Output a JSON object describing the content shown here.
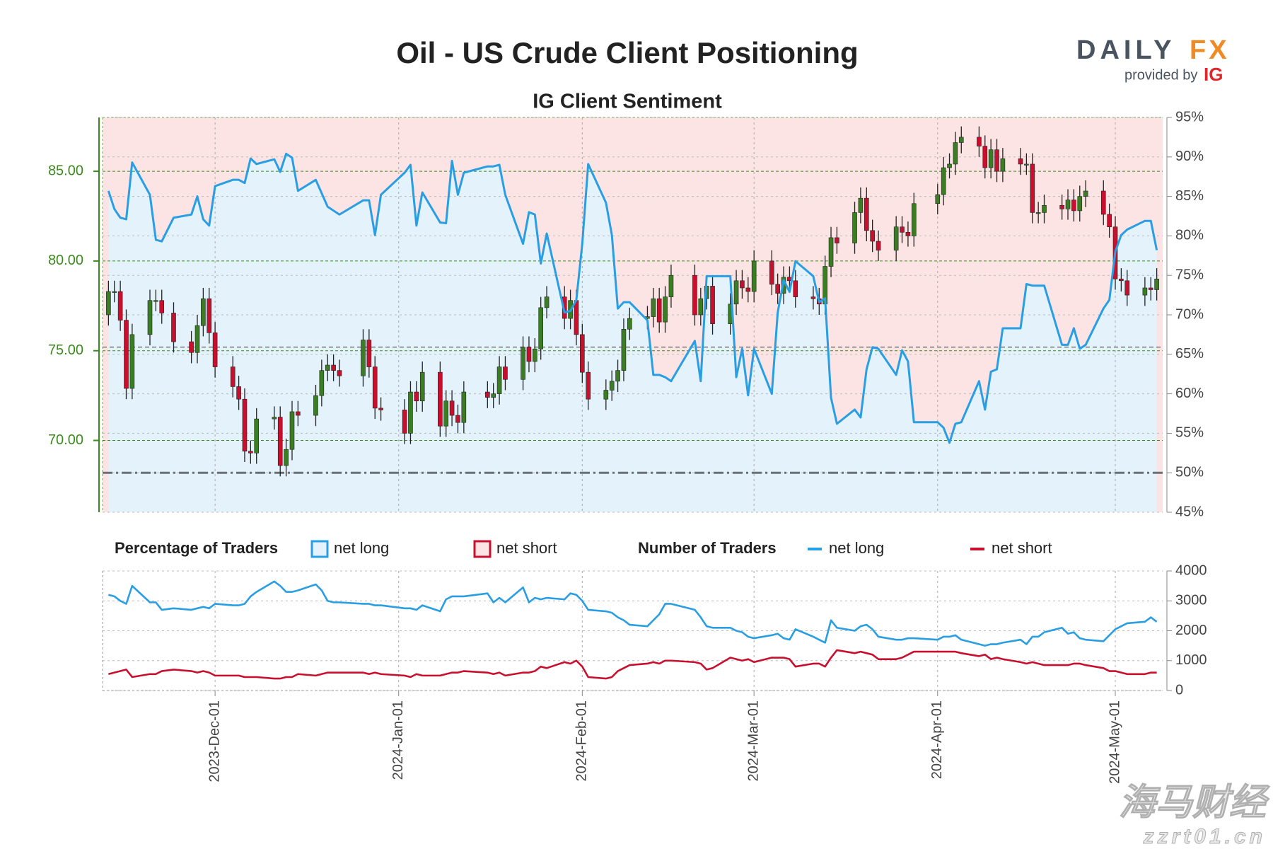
{
  "branding": {
    "name_left": "DAILY",
    "name_right": "FX",
    "provided_by": "provided by",
    "ig": "IG"
  },
  "watermark": [
    "海马财经",
    "zzrt01.cn"
  ],
  "chart_data": [
    {
      "type": "candlestick",
      "title": "Oil - US Crude Client Positioning",
      "subtitle": "IG Client Sentiment",
      "legend_title": "Percentage of Traders",
      "up_color": "#3b7d23",
      "down_color": "#c8102e",
      "wick_color": "#222222",
      "y_axis_color": "#3c8a1e",
      "ylim": [
        66,
        88
      ],
      "yticks": [
        {
          "value": 70,
          "label": "70.00"
        },
        {
          "value": 75,
          "label": "75.00"
        },
        {
          "value": 80,
          "label": "80.00"
        },
        {
          "value": 85,
          "label": "85.00"
        }
      ],
      "y2lim": [
        45,
        95
      ],
      "y2ticks": [
        {
          "value": 45,
          "label": "45%"
        },
        {
          "value": 50,
          "label": "50%"
        },
        {
          "value": 55,
          "label": "55%"
        },
        {
          "value": 60,
          "label": "60%"
        },
        {
          "value": 65,
          "label": "65%"
        },
        {
          "value": 70,
          "label": "70%"
        },
        {
          "value": 75,
          "label": "75%"
        },
        {
          "value": 80,
          "label": "80%"
        },
        {
          "value": 85,
          "label": "85%"
        },
        {
          "value": 90,
          "label": "90%"
        },
        {
          "value": 95,
          "label": "95%"
        }
      ],
      "price_line": 75.2,
      "y2_midline": 50,
      "grid": true,
      "x": [
        "2023-11-13",
        "2023-11-14",
        "2023-11-15",
        "2023-11-16",
        "2023-11-17",
        "2023-11-20",
        "2023-11-21",
        "2023-11-22",
        "2023-11-24",
        "2023-11-27",
        "2023-11-28",
        "2023-11-29",
        "2023-11-30",
        "2023-12-01",
        "2023-12-04",
        "2023-12-05",
        "2023-12-06",
        "2023-12-07",
        "2023-12-08",
        "2023-12-11",
        "2023-12-12",
        "2023-12-13",
        "2023-12-14",
        "2023-12-15",
        "2023-12-18",
        "2023-12-19",
        "2023-12-20",
        "2023-12-21",
        "2023-12-22",
        "2023-12-26",
        "2023-12-27",
        "2023-12-28",
        "2023-12-29",
        "2024-01-02",
        "2024-01-03",
        "2024-01-04",
        "2024-01-05",
        "2024-01-08",
        "2024-01-09",
        "2024-01-10",
        "2024-01-11",
        "2024-01-12",
        "2024-01-16",
        "2024-01-17",
        "2024-01-18",
        "2024-01-19",
        "2024-01-22",
        "2024-01-23",
        "2024-01-24",
        "2024-01-25",
        "2024-01-26",
        "2024-01-29",
        "2024-01-30",
        "2024-01-31",
        "2024-02-01",
        "2024-02-02",
        "2024-02-05",
        "2024-02-06",
        "2024-02-07",
        "2024-02-08",
        "2024-02-09",
        "2024-02-12",
        "2024-02-13",
        "2024-02-14",
        "2024-02-15",
        "2024-02-16",
        "2024-02-20",
        "2024-02-21",
        "2024-02-22",
        "2024-02-23",
        "2024-02-26",
        "2024-02-27",
        "2024-02-28",
        "2024-02-29",
        "2024-03-01",
        "2024-03-04",
        "2024-03-05",
        "2024-03-06",
        "2024-03-07",
        "2024-03-08",
        "2024-03-11",
        "2024-03-12",
        "2024-03-13",
        "2024-03-14",
        "2024-03-15",
        "2024-03-18",
        "2024-03-19",
        "2024-03-20",
        "2024-03-21",
        "2024-03-22",
        "2024-03-25",
        "2024-03-26",
        "2024-03-27",
        "2024-03-28",
        "2024-04-01",
        "2024-04-02",
        "2024-04-03",
        "2024-04-04",
        "2024-04-05",
        "2024-04-08",
        "2024-04-09",
        "2024-04-10",
        "2024-04-11",
        "2024-04-12",
        "2024-04-15",
        "2024-04-16",
        "2024-04-17",
        "2024-04-18",
        "2024-04-19",
        "2024-04-22",
        "2024-04-23",
        "2024-04-24",
        "2024-04-25",
        "2024-04-26",
        "2024-04-29",
        "2024-04-30",
        "2024-05-01",
        "2024-05-02",
        "2024-05-03",
        "2024-05-06",
        "2024-05-07",
        "2024-05-08"
      ],
      "open": [
        77.0,
        78.3,
        78.3,
        76.7,
        72.9,
        75.9,
        77.8,
        77.8,
        77.1,
        75.5,
        74.9,
        76.4,
        77.9,
        76.0,
        74.1,
        73.0,
        72.3,
        69.4,
        69.3,
        71.2,
        71.3,
        68.6,
        69.5,
        71.6,
        71.4,
        72.5,
        73.9,
        74.2,
        73.9,
        73.6,
        75.6,
        74.1,
        71.8,
        71.7,
        70.4,
        72.7,
        72.2,
        73.8,
        70.8,
        72.2,
        71.4,
        71.0,
        72.7,
        72.4,
        72.6,
        74.1,
        73.4,
        75.2,
        74.4,
        75.1,
        77.4,
        78.0,
        76.8,
        77.8,
        75.9,
        73.8,
        72.3,
        72.8,
        73.3,
        73.9,
        76.2,
        76.8,
        76.9,
        77.9,
        76.6,
        78.0,
        79.2,
        77.0,
        77.9,
        78.6,
        76.5,
        77.6,
        78.9,
        78.5,
        78.3,
        80.0,
        78.7,
        78.2,
        79.1,
        78.9,
        78.0,
        77.9,
        77.6,
        79.7,
        81.3,
        81.0,
        82.7,
        83.5,
        81.7,
        81.1,
        80.6,
        81.9,
        81.6,
        81.4,
        83.2,
        83.7,
        85.2,
        85.4,
        86.6,
        86.9,
        86.4,
        85.2,
        86.2,
        85.0,
        85.7,
        85.4,
        85.4,
        82.7,
        82.7,
        83.1,
        82.9,
        83.4,
        82.8,
        83.6,
        83.9,
        82.6,
        81.9,
        79.0,
        78.9,
        78.1,
        78.5,
        78.4
      ],
      "high": [
        78.9,
        78.9,
        78.9,
        77.3,
        76.5,
        78.4,
        78.4,
        78.4,
        77.7,
        76.1,
        77.0,
        78.5,
        78.5,
        76.6,
        74.7,
        73.6,
        72.9,
        70.0,
        71.8,
        71.9,
        71.9,
        70.1,
        72.2,
        72.2,
        73.1,
        74.5,
        74.8,
        74.8,
        74.5,
        76.2,
        76.2,
        74.7,
        72.4,
        72.3,
        73.3,
        73.3,
        74.4,
        74.4,
        72.8,
        72.8,
        72.0,
        73.3,
        73.3,
        73.2,
        74.7,
        74.7,
        75.8,
        75.8,
        75.7,
        78.0,
        78.6,
        78.6,
        78.4,
        78.4,
        76.5,
        74.4,
        73.4,
        73.9,
        74.5,
        76.8,
        77.4,
        77.5,
        78.5,
        78.5,
        78.6,
        79.8,
        79.8,
        78.5,
        79.2,
        79.2,
        78.2,
        79.5,
        79.5,
        79.1,
        80.6,
        80.6,
        79.3,
        79.7,
        79.7,
        79.5,
        78.6,
        78.5,
        80.3,
        81.9,
        81.9,
        83.3,
        84.1,
        84.1,
        82.3,
        81.7,
        82.5,
        82.5,
        82.2,
        83.8,
        84.3,
        85.8,
        86.0,
        87.2,
        87.5,
        87.5,
        87.0,
        86.8,
        86.8,
        86.3,
        86.3,
        86.0,
        86.0,
        83.3,
        83.7,
        83.7,
        84.0,
        84.0,
        84.2,
        84.5,
        84.5,
        83.2,
        82.5,
        79.6,
        79.5,
        79.1,
        79.1,
        79.6
      ],
      "low": [
        76.4,
        77.7,
        76.1,
        72.3,
        72.3,
        75.3,
        77.2,
        76.5,
        74.9,
        74.3,
        74.3,
        75.8,
        75.4,
        73.5,
        72.4,
        71.7,
        68.8,
        68.7,
        68.7,
        70.6,
        68.0,
        68.0,
        68.9,
        70.8,
        70.8,
        71.9,
        73.3,
        73.3,
        73.0,
        73.0,
        73.5,
        71.2,
        71.1,
        69.8,
        69.8,
        71.6,
        71.6,
        70.2,
        70.2,
        70.8,
        70.4,
        70.4,
        71.8,
        71.8,
        72.0,
        72.8,
        72.8,
        73.8,
        73.8,
        74.5,
        76.8,
        76.2,
        76.2,
        75.3,
        73.2,
        71.7,
        71.7,
        72.2,
        72.7,
        73.3,
        75.6,
        76.2,
        76.3,
        76.0,
        76.0,
        77.4,
        76.4,
        76.4,
        77.3,
        75.9,
        75.9,
        77.0,
        77.9,
        77.7,
        77.7,
        78.1,
        77.6,
        77.6,
        78.3,
        77.4,
        77.3,
        77.0,
        77.0,
        79.1,
        80.4,
        80.4,
        82.1,
        81.1,
        80.5,
        80.0,
        80.0,
        81.0,
        80.8,
        80.8,
        82.6,
        83.1,
        84.6,
        84.8,
        86.0,
        85.8,
        84.6,
        84.6,
        84.4,
        84.4,
        84.8,
        84.8,
        82.1,
        82.1,
        82.1,
        82.3,
        82.3,
        82.2,
        82.2,
        83.0,
        82.0,
        81.3,
        78.4,
        78.3,
        77.5,
        77.5,
        77.8,
        77.8
      ],
      "close": [
        78.3,
        78.3,
        76.7,
        72.9,
        75.9,
        77.8,
        77.8,
        77.1,
        75.5,
        74.9,
        76.4,
        77.9,
        76.0,
        74.1,
        73.0,
        72.3,
        69.4,
        69.3,
        71.2,
        71.3,
        68.6,
        69.5,
        71.6,
        71.4,
        72.5,
        73.9,
        74.2,
        73.9,
        73.6,
        75.6,
        74.1,
        71.8,
        71.7,
        70.4,
        72.7,
        72.2,
        73.8,
        70.8,
        72.2,
        71.4,
        71.0,
        72.7,
        72.4,
        72.6,
        74.1,
        73.4,
        75.2,
        74.4,
        75.1,
        77.4,
        78.0,
        76.8,
        77.8,
        75.9,
        73.8,
        72.3,
        72.8,
        73.3,
        73.9,
        76.2,
        76.8,
        76.9,
        77.9,
        76.6,
        78.0,
        79.2,
        77.0,
        77.9,
        78.6,
        76.5,
        77.6,
        78.9,
        78.5,
        78.3,
        80.0,
        78.7,
        78.2,
        79.1,
        78.9,
        78.0,
        77.9,
        77.6,
        79.7,
        81.3,
        81.0,
        82.7,
        83.5,
        81.7,
        81.1,
        80.6,
        81.9,
        81.6,
        81.4,
        83.2,
        83.7,
        85.2,
        85.4,
        86.6,
        86.9,
        86.4,
        85.2,
        86.2,
        85.0,
        85.7,
        85.4,
        85.4,
        82.7,
        82.7,
        83.1,
        82.9,
        83.4,
        82.8,
        83.6,
        83.9,
        82.6,
        81.9,
        79.0,
        78.9,
        78.1,
        78.5,
        78.4,
        79.0
      ],
      "series": [
        {
          "name": "net long",
          "color": "#2a9ee3",
          "fill": "#e3f2fb",
          "axis": "y2",
          "values": [
            85.7,
            83.4,
            82.3,
            82.1,
            89.3,
            85.2,
            79.5,
            79.3,
            82.3,
            82.7,
            85.0,
            82.1,
            81.3,
            86.3,
            87.1,
            87.1,
            86.7,
            89.8,
            89.1,
            89.7,
            88.1,
            90.4,
            89.9,
            85.7,
            87.1,
            85.4,
            83.7,
            83.2,
            82.7,
            84.5,
            84.5,
            80.1,
            85.2,
            88.0,
            89.0,
            81.3,
            85.5,
            81.7,
            81.6,
            89.5,
            85.2,
            88.0,
            88.8,
            88.8,
            89.0,
            85.2,
            79.0,
            83.0,
            82.7,
            76.5,
            80.3,
            70.3,
            70.5,
            71.9,
            79.0,
            89.1,
            84.2,
            80.1,
            70.8,
            71.6,
            71.6,
            69.3,
            62.4,
            62.4,
            62.1,
            61.6,
            66.7,
            61.6,
            74.9,
            74.9,
            74.9,
            62.1,
            65.7,
            59.8,
            65.7,
            60.0,
            70.3,
            74.4,
            72.9,
            76.8,
            74.9,
            71.6,
            72.1,
            59.5,
            56.2,
            58.0,
            57.0,
            63.1,
            65.9,
            65.7,
            62.4,
            65.5,
            64.1,
            56.4,
            56.4,
            55.7,
            53.8,
            56.2,
            56.4,
            61.6,
            58.0,
            62.8,
            63.1,
            68.3,
            68.3,
            73.9,
            73.7,
            73.7,
            73.7,
            66.2,
            66.2,
            68.3,
            65.7,
            66.2,
            70.8,
            71.9,
            78.0,
            80.1,
            80.8,
            81.9,
            81.9,
            78.2
          ]
        }
      ],
      "background": {
        "name": "net short",
        "color": "#c8102e",
        "fill": "#fce4e4"
      }
    },
    {
      "type": "line",
      "legend_title": "Number of Traders",
      "xlim": [
        "2023-11-12",
        "2024-05-09"
      ],
      "xticks": [
        {
          "value": "2023-12-01",
          "label": "2023-Dec-01"
        },
        {
          "value": "2024-01-01",
          "label": "2024-Jan-01"
        },
        {
          "value": "2024-02-01",
          "label": "2024-Feb-01"
        },
        {
          "value": "2024-03-01",
          "label": "2024-Mar-01"
        },
        {
          "value": "2024-04-01",
          "label": "2024-Apr-01"
        },
        {
          "value": "2024-05-01",
          "label": "2024-May-01"
        }
      ],
      "ylim": [
        0,
        4000
      ],
      "yticks": [
        0,
        1000,
        2000,
        3000,
        4000
      ],
      "grid": true,
      "series": [
        {
          "name": "net long",
          "color": "#2a9ee3",
          "values": [
            3200,
            3150,
            3000,
            2900,
            3500,
            2950,
            2950,
            2700,
            2750,
            2700,
            2750,
            2800,
            2750,
            2900,
            2850,
            2850,
            2900,
            3150,
            3300,
            3650,
            3500,
            3300,
            3300,
            3350,
            3550,
            3350,
            3000,
            2950,
            2950,
            2900,
            2900,
            2850,
            2850,
            2750,
            2750,
            2700,
            2850,
            2650,
            3050,
            3150,
            3150,
            3150,
            3250,
            2950,
            3100,
            2950,
            3450,
            2950,
            3100,
            3050,
            3100,
            3050,
            3250,
            3200,
            3000,
            2700,
            2650,
            2600,
            2450,
            2350,
            2200,
            2150,
            2350,
            2550,
            2900,
            2900,
            2700,
            2450,
            2150,
            2100,
            2100,
            2000,
            1950,
            1800,
            1750,
            1850,
            1900,
            1750,
            1700,
            2050,
            1800,
            1700,
            1600,
            2350,
            2100,
            2000,
            2150,
            2200,
            2050,
            1800,
            1700,
            1700,
            1750,
            1750,
            1700,
            1800,
            1800,
            1850,
            1700,
            1550,
            1500,
            1550,
            1550,
            1600,
            1700,
            1550,
            1800,
            1800,
            1950,
            2100,
            1900,
            1950,
            1750,
            1700,
            1650,
            1850,
            2050,
            2150,
            2250,
            2300,
            2450,
            2300
          ]
        },
        {
          "name": "net short",
          "color": "#c8102e",
          "values": [
            550,
            600,
            650,
            700,
            450,
            550,
            550,
            650,
            700,
            650,
            600,
            650,
            600,
            500,
            500,
            500,
            450,
            450,
            450,
            400,
            400,
            450,
            450,
            550,
            500,
            550,
            600,
            600,
            600,
            600,
            550,
            600,
            550,
            500,
            450,
            550,
            500,
            500,
            550,
            600,
            600,
            650,
            600,
            550,
            600,
            500,
            600,
            600,
            650,
            800,
            750,
            950,
            900,
            1000,
            800,
            450,
            400,
            450,
            650,
            750,
            850,
            900,
            950,
            900,
            1000,
            1000,
            950,
            900,
            700,
            750,
            1100,
            1050,
            1000,
            1050,
            950,
            1100,
            1100,
            1100,
            1050,
            800,
            900,
            900,
            800,
            1100,
            1350,
            1250,
            1300,
            1250,
            1200,
            1050,
            1050,
            1100,
            1200,
            1300,
            1300,
            1300,
            1300,
            1300,
            1250,
            1150,
            1200,
            1050,
            1100,
            1050,
            950,
            900,
            950,
            900,
            850,
            850,
            850,
            900,
            900,
            850,
            750,
            650,
            650,
            600,
            550,
            550,
            600,
            600
          ]
        }
      ]
    }
  ]
}
